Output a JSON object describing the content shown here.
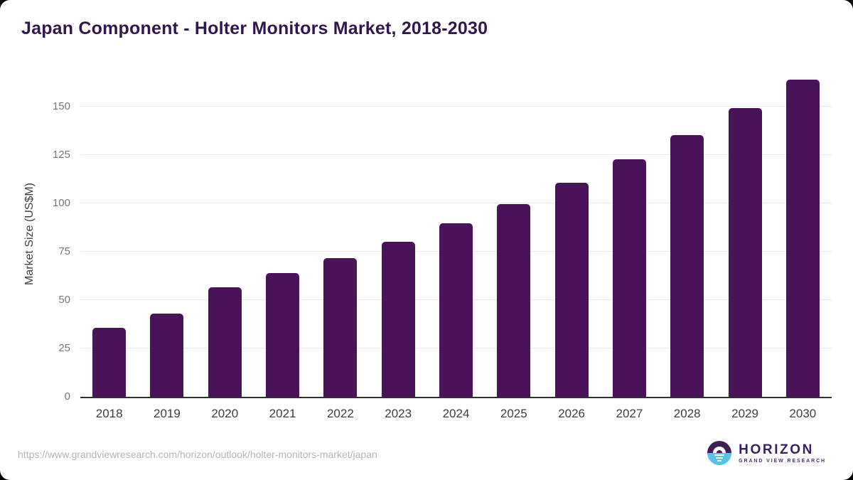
{
  "header": {
    "title": "Japan Component - Holter Monitors Market, 2018-2030"
  },
  "chart_data": {
    "type": "bar",
    "title": "Japan Component - Holter Monitors Market, 2018-2030",
    "categories": [
      "2018",
      "2019",
      "2020",
      "2021",
      "2022",
      "2023",
      "2024",
      "2025",
      "2026",
      "2027",
      "2028",
      "2029",
      "2030"
    ],
    "values": [
      35.5,
      43.2,
      56.7,
      64.1,
      71.8,
      80.3,
      89.7,
      99.6,
      110.5,
      122.8,
      135.3,
      149.3,
      163.9
    ],
    "xlabel": "",
    "ylabel": "Market Size (US$M)",
    "ylim": [
      0,
      168
    ],
    "yticks": [
      0,
      25,
      50,
      75,
      100,
      125,
      150
    ],
    "grid": true,
    "legend": "none",
    "bar_color": "#4a1259"
  },
  "footer": {
    "source_url": "https://www.grandviewresearch.com/horizon/outlook/holter-monitors-market/japan",
    "logo": {
      "brand": "HORIZON",
      "sub_brand": "GRAND VIEW RESEARCH"
    }
  },
  "colors": {
    "bar": "#4a1259",
    "title_text": "#321650",
    "axis_label_text": "#3f3f3f",
    "tick_text": "#757575",
    "x_tick_text": "#3d3d3d",
    "gridline": "#e9e9e9",
    "baseline": "#2f2f2f",
    "url_text": "#b5b5b5",
    "logo_purple": "#3b1f55",
    "logo_blue": "#5ac2ea",
    "card_background": "#ffffff"
  }
}
